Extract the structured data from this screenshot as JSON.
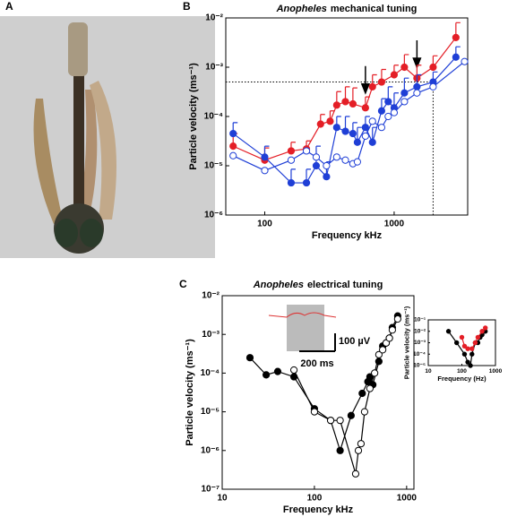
{
  "photo": {
    "panel": "A"
  },
  "chart_data": [
    {
      "type": "line",
      "panel": "B",
      "title": [
        "Anopheles",
        "mechanical tuning"
      ],
      "xlabel": "Frequency kHz",
      "ylabel": "Particle velocity (ms⁻¹)",
      "xscale": "log",
      "yscale": "log",
      "xlim": [
        50,
        3700
      ],
      "ylim": [
        1e-06,
        0.01
      ],
      "xticks": [
        100,
        1000
      ],
      "yticks": [
        {
          "value": 1e-06,
          "label": "10⁻⁶"
        },
        {
          "value": 1e-05,
          "label": "10⁻⁵"
        },
        {
          "value": 0.0001,
          "label": "10⁻⁴"
        },
        {
          "value": 0.001,
          "label": "10⁻³"
        },
        {
          "value": 0.01,
          "label": "10⁻²"
        }
      ],
      "series": [
        {
          "color": "#e41e26",
          "marker": "filled",
          "x": [
            57,
            100,
            160,
            210,
            270,
            320,
            360,
            420,
            480,
            600,
            680,
            800,
            1000,
            1200,
            1500,
            2000,
            3000
          ],
          "values": [
            2.5e-05,
            1.3e-05,
            2e-05,
            2.2e-05,
            7e-05,
            8e-05,
            0.00017,
            0.0002,
            0.00018,
            0.00015,
            0.0004,
            0.0005,
            0.0007,
            0.001,
            0.0006,
            0.001,
            0.004
          ],
          "errors": [
            2e-05,
            1e-05,
            1e-05,
            1e-05,
            4e-05,
            5e-05,
            0.00015,
            0.0002,
            0.0002,
            0.0001,
            0.0003,
            0.0004,
            0.0004,
            0.0008,
            0.0005,
            0.0007,
            0.004
          ]
        },
        {
          "color": "#1f3fd6",
          "marker": "filled",
          "x": [
            57,
            100,
            160,
            210,
            250,
            300,
            360,
            420,
            480,
            520,
            600,
            680,
            800,
            900,
            1000,
            1200,
            1500,
            2000,
            3000
          ],
          "values": [
            4.5e-05,
            1.5e-05,
            4.5e-06,
            4.5e-06,
            1e-05,
            6e-06,
            6e-05,
            5e-05,
            4.5e-05,
            3e-05,
            6e-05,
            3e-05,
            0.00013,
            0.0002,
            0.00015,
            0.0003,
            0.0004,
            0.0005,
            0.0016
          ],
          "errors": [
            3e-05,
            1e-05,
            4e-06,
            4e-06,
            1.5e-05,
            6e-06,
            4e-05,
            5e-05,
            3e-05,
            3e-05,
            4e-05,
            3e-05,
            0.0001,
            0.0002,
            0.00015,
            0.0003,
            0.0003,
            0.0003,
            0.001
          ]
        },
        {
          "color": "#1f3fd6",
          "marker": "open",
          "x": [
            57,
            100,
            160,
            210,
            250,
            300,
            360,
            420,
            480,
            520,
            600,
            680,
            800,
            900,
            1000,
            1200,
            1500,
            2000,
            3500
          ],
          "values": [
            1.6e-05,
            8e-06,
            1.3e-05,
            2e-05,
            1.5e-05,
            1e-05,
            1.5e-05,
            1.3e-05,
            1.1e-05,
            1.2e-05,
            4e-05,
            8e-05,
            6e-05,
            0.0001,
            0.00012,
            0.0002,
            0.0003,
            0.0004,
            0.0013
          ]
        }
      ],
      "reference": {
        "x": 2000,
        "y": 0.0005
      },
      "arrows": [
        {
          "x": 600,
          "y": 0.0003
        },
        {
          "x": 1500,
          "y": 0.001
        }
      ]
    },
    {
      "type": "line",
      "panel": "C",
      "title": [
        "Anopheles",
        "electrical tuning"
      ],
      "xlabel": "Frequency kHz",
      "ylabel": "Particle velocity (ms⁻¹)",
      "xscale": "log",
      "yscale": "log",
      "xlim": [
        10,
        1200
      ],
      "ylim": [
        1e-07,
        0.01
      ],
      "xticks": [
        10,
        100,
        1000
      ],
      "yticks": [
        {
          "value": 1e-07,
          "label": "10⁻⁷"
        },
        {
          "value": 1e-06,
          "label": "10⁻⁶"
        },
        {
          "value": 1e-05,
          "label": "10⁻⁵"
        },
        {
          "value": 0.0001,
          "label": "10⁻⁴"
        },
        {
          "value": 0.001,
          "label": "10⁻³"
        },
        {
          "value": 0.01,
          "label": "10⁻²"
        }
      ],
      "annotations": [
        "100 µV",
        "200 ms"
      ],
      "series": [
        {
          "color": "#000000",
          "marker": "filled",
          "x": [
            20,
            30,
            40,
            60,
            100,
            150,
            190,
            250,
            330,
            380,
            400,
            430,
            500,
            550,
            600,
            650,
            700,
            800
          ],
          "values": [
            0.00025,
            9e-05,
            0.00011,
            8e-05,
            1.2e-05,
            6e-06,
            1e-06,
            8e-06,
            3e-05,
            6e-05,
            8e-05,
            5e-05,
            0.0002,
            0.0005,
            0.0006,
            0.0008,
            0.0015,
            0.003
          ]
        },
        {
          "color": "#000000",
          "marker": "open",
          "x": [
            60,
            100,
            150,
            190,
            280,
            300,
            320,
            350,
            400,
            450,
            500,
            550,
            600,
            650,
            700,
            800
          ],
          "values": [
            0.00012,
            1e-05,
            6e-06,
            6e-06,
            2.5e-07,
            1e-06,
            1.5e-06,
            1e-05,
            4e-05,
            0.0001,
            0.0003,
            0.0004,
            0.0006,
            0.0008,
            0.0013,
            0.0025
          ]
        }
      ]
    },
    {
      "type": "line",
      "xlabel": "Frequency (Hz)",
      "ylabel": "Particle velocity (ms⁻¹)",
      "xscale": "log",
      "yscale": "log",
      "xlim": [
        10,
        1000
      ],
      "ylim": [
        1e-05,
        0.1
      ],
      "xticks": [
        10,
        100,
        1000
      ],
      "yticks": [
        {
          "value": 1e-05,
          "label": "10⁻⁵"
        },
        {
          "value": 0.0001,
          "label": "10⁻⁴"
        },
        {
          "value": 0.001,
          "label": "10⁻³"
        },
        {
          "value": 0.01,
          "label": "10⁻²"
        },
        {
          "value": 0.1,
          "label": "10⁻¹"
        }
      ],
      "series": [
        {
          "color": "#000000",
          "marker": "filled",
          "x": [
            40,
            70,
            120,
            150,
            180,
            200,
            250,
            300,
            350,
            400,
            500
          ],
          "values": [
            0.01,
            0.001,
            0.0001,
            2e-05,
            1e-05,
            0.0001,
            0.001,
            0.001,
            0.003,
            0.005,
            0.01
          ]
        },
        {
          "color": "#e41e26",
          "marker": "filled",
          "x": [
            100,
            120,
            150,
            200,
            250,
            300,
            400,
            500
          ],
          "values": [
            0.003,
            0.0005,
            0.0003,
            0.0003,
            0.001,
            0.003,
            0.01,
            0.02
          ]
        }
      ]
    }
  ]
}
